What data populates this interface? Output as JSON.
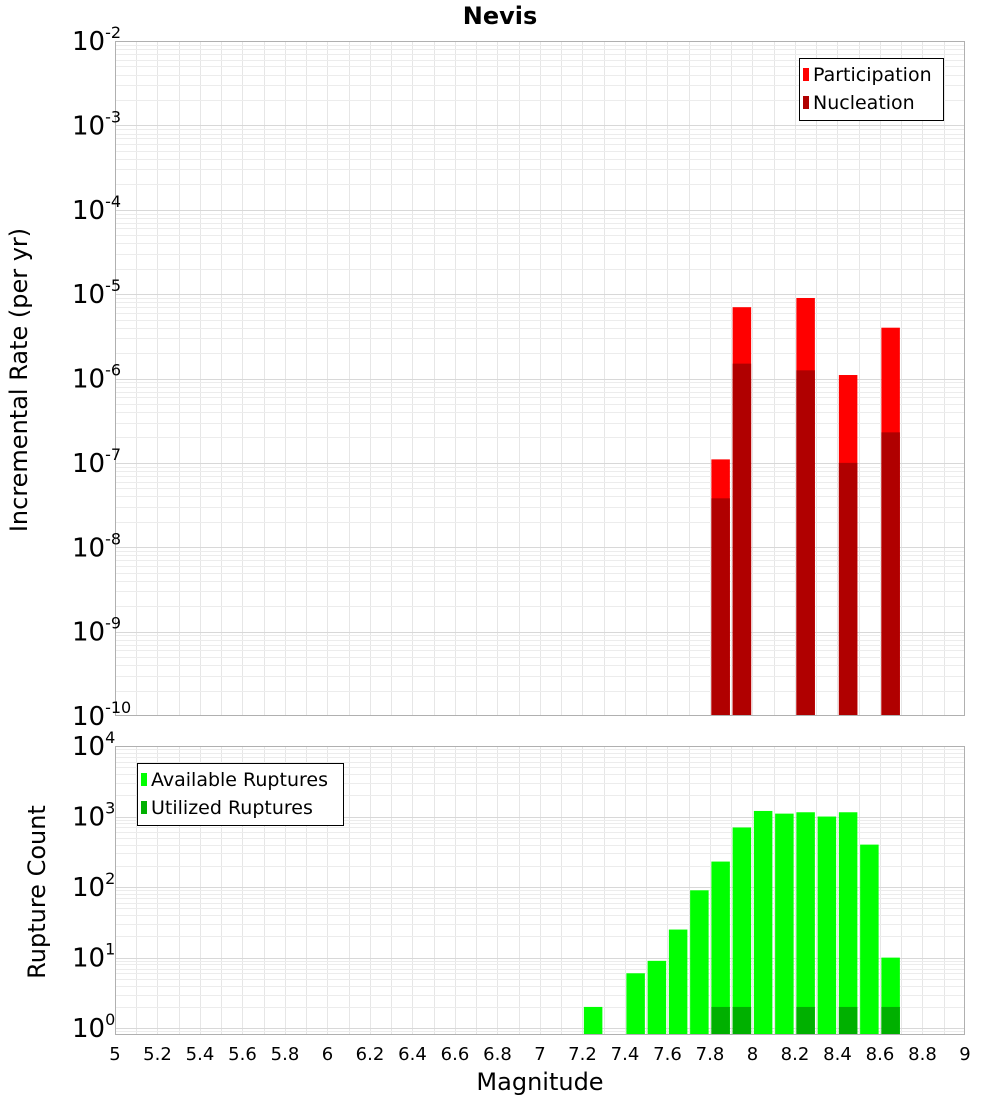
{
  "chart_data": [
    {
      "type": "bar",
      "title": "Nevis",
      "ylabel": "Incremental Rate (per yr)",
      "xlabel": "",
      "yscale": "log",
      "xlim": [
        5,
        9
      ],
      "ylim": [
        1e-10,
        0.01
      ],
      "y_ticks": [
        {
          "base": "10",
          "exp": "-10",
          "value": 1e-10
        },
        {
          "base": "10",
          "exp": "-9",
          "value": 1e-09
        },
        {
          "base": "10",
          "exp": "-8",
          "value": 1e-08
        },
        {
          "base": "10",
          "exp": "-7",
          "value": 1e-07
        },
        {
          "base": "10",
          "exp": "-6",
          "value": 1e-06
        },
        {
          "base": "10",
          "exp": "-5",
          "value": 1e-05
        },
        {
          "base": "10",
          "exp": "-4",
          "value": 0.0001
        },
        {
          "base": "10",
          "exp": "-3",
          "value": 0.001
        },
        {
          "base": "10",
          "exp": "-2",
          "value": 0.01
        }
      ],
      "legend": {
        "position": "top-right"
      },
      "grid": true,
      "series": [
        {
          "name": "Participation",
          "color": "#ff0000",
          "points": [
            {
              "x": 7.85,
              "y": 1.1e-07
            },
            {
              "x": 7.95,
              "y": 7e-06
            },
            {
              "x": 8.25,
              "y": 9e-06
            },
            {
              "x": 8.45,
              "y": 1.1e-06
            },
            {
              "x": 8.65,
              "y": 4e-06
            }
          ]
        },
        {
          "name": "Nucleation",
          "color": "#b00000",
          "points": [
            {
              "x": 7.85,
              "y": 3.8e-08
            },
            {
              "x": 7.95,
              "y": 1.5e-06
            },
            {
              "x": 8.25,
              "y": 1.25e-06
            },
            {
              "x": 8.45,
              "y": 1e-07
            },
            {
              "x": 8.65,
              "y": 2.3e-07
            }
          ]
        }
      ]
    },
    {
      "type": "bar",
      "title": "",
      "ylabel": "Rupture Count",
      "xlabel": "Magnitude",
      "yscale": "log",
      "xlim": [
        5,
        9
      ],
      "ylim": [
        0.8,
        10000
      ],
      "x_ticks": [
        "5",
        "5.2",
        "5.4",
        "5.6",
        "5.8",
        "6",
        "6.2",
        "6.4",
        "6.6",
        "6.8",
        "7",
        "7.2",
        "7.4",
        "7.6",
        "7.8",
        "8",
        "8.2",
        "8.4",
        "8.6",
        "8.8",
        "9"
      ],
      "y_ticks": [
        {
          "base": "10",
          "exp": "0",
          "value": 1
        },
        {
          "base": "10",
          "exp": "1",
          "value": 10
        },
        {
          "base": "10",
          "exp": "2",
          "value": 100
        },
        {
          "base": "10",
          "exp": "3",
          "value": 1000
        },
        {
          "base": "10",
          "exp": "4",
          "value": 10000
        }
      ],
      "legend": {
        "position": "top-left"
      },
      "grid": true,
      "series": [
        {
          "name": "Available Ruptures",
          "color": "#00ff00",
          "points": [
            {
              "x": 7.25,
              "y": 2
            },
            {
              "x": 7.45,
              "y": 6
            },
            {
              "x": 7.55,
              "y": 9
            },
            {
              "x": 7.65,
              "y": 25
            },
            {
              "x": 7.75,
              "y": 90
            },
            {
              "x": 7.85,
              "y": 230
            },
            {
              "x": 7.95,
              "y": 700
            },
            {
              "x": 8.05,
              "y": 1200
            },
            {
              "x": 8.15,
              "y": 1100
            },
            {
              "x": 8.25,
              "y": 1150
            },
            {
              "x": 8.35,
              "y": 1000
            },
            {
              "x": 8.45,
              "y": 1150
            },
            {
              "x": 8.55,
              "y": 400
            },
            {
              "x": 8.65,
              "y": 10
            }
          ]
        },
        {
          "name": "Utilized Ruptures",
          "color": "#00b000",
          "points": [
            {
              "x": 7.85,
              "y": 2
            },
            {
              "x": 7.95,
              "y": 2
            },
            {
              "x": 8.25,
              "y": 2
            },
            {
              "x": 8.45,
              "y": 2
            },
            {
              "x": 8.65,
              "y": 2
            }
          ]
        }
      ]
    }
  ]
}
